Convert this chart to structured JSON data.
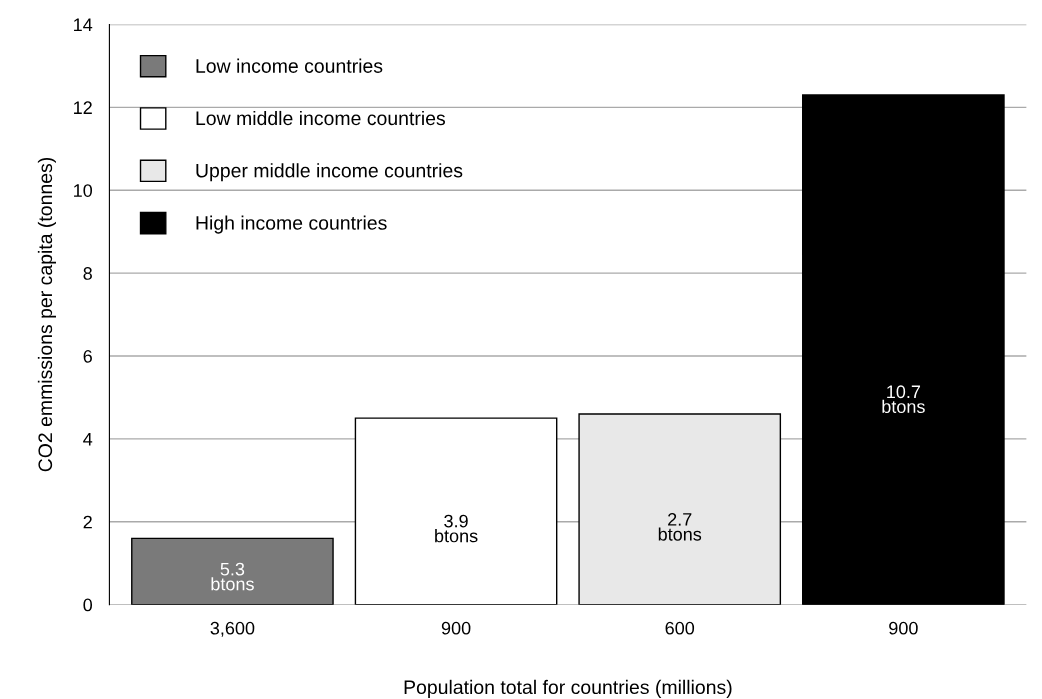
{
  "chart_data": {
    "type": "bar",
    "xlabel": "Population total for countries (millions)",
    "ylabel": "CO2 emmissions per capita (tonnes)",
    "categories": [
      "3,600",
      "900",
      "600",
      "900"
    ],
    "series": [
      {
        "name": "Low income countries",
        "color": "#7a7a7a",
        "values": [
          1.6,
          null,
          null,
          null
        ]
      },
      {
        "name": "Low middle income countries",
        "color": "#ffffff",
        "values": [
          null,
          4.5,
          null,
          null
        ]
      },
      {
        "name": "Upper middle income countries",
        "color": "#e8e8e8",
        "values": [
          null,
          null,
          4.6,
          null
        ]
      },
      {
        "name": "High income countries",
        "color": "#000000",
        "values": [
          null,
          null,
          null,
          12.3
        ]
      }
    ],
    "annotations": [
      "5.3\nbtons",
      "3.9\nbtons",
      "2.7\nbtons",
      "10.7\nbtons"
    ],
    "ylim": [
      0,
      14
    ],
    "yticks": [
      0,
      2,
      4,
      6,
      8,
      10,
      12,
      14
    ],
    "grid": "y",
    "legend": "top left"
  }
}
